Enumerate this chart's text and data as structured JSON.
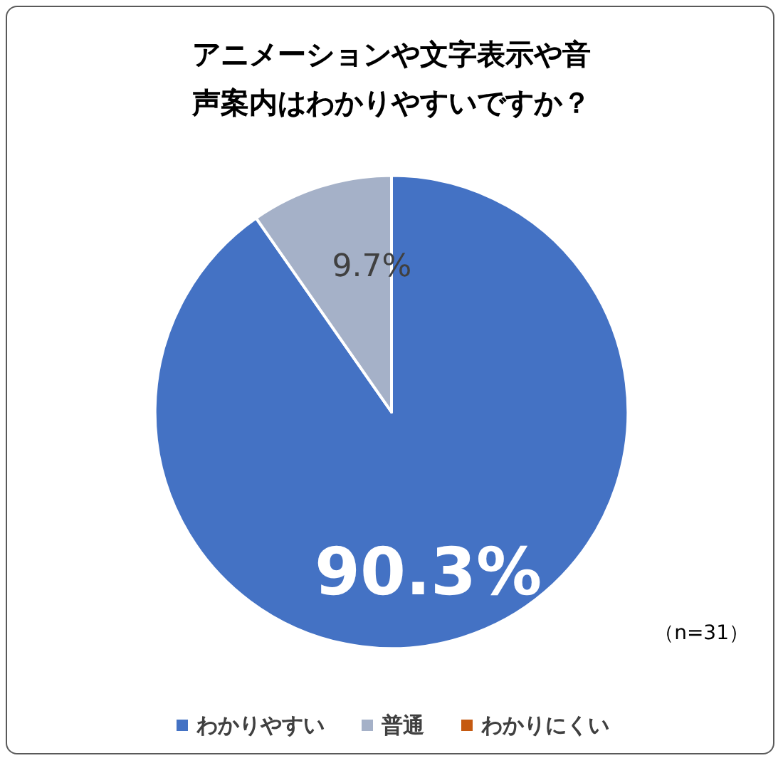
{
  "chart_data": {
    "type": "pie",
    "title": "アニメーションや文字表示や音声案内はわかりやすいですか？",
    "categories": [
      "わかりやすい",
      "普通",
      "わかりにくい"
    ],
    "values": [
      90.3,
      9.7,
      0
    ],
    "colors": [
      "#4472c4",
      "#a5b1c8",
      "#c55a11"
    ],
    "value_labels": [
      "90.3%",
      "9.7%",
      null
    ],
    "annotations": [
      "（n=31）"
    ],
    "legend": "bottom"
  }
}
